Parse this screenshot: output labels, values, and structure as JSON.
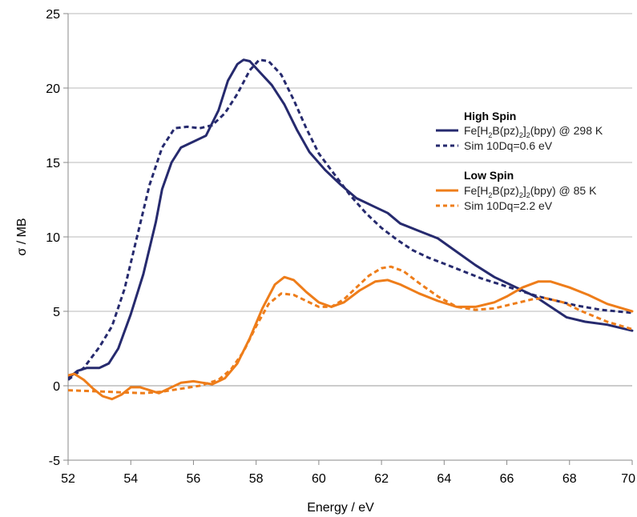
{
  "chart_data": {
    "type": "line",
    "xlabel": "Energy / eV",
    "ylabel": "σ / MB",
    "xlim": [
      52,
      70
    ],
    "ylim": [
      -5,
      25
    ],
    "xticks": [
      "52",
      "54",
      "56",
      "58",
      "60",
      "62",
      "64",
      "66",
      "68",
      "70"
    ],
    "yticks": [
      "-5",
      "0",
      "5",
      "10",
      "15",
      "20",
      "25"
    ],
    "grid": "horizontal",
    "legend_position": "right",
    "legend_groups": [
      {
        "heading": "High Spin",
        "entries": [
          0,
          1
        ]
      },
      {
        "heading": "Low Spin",
        "entries": [
          2,
          3
        ]
      }
    ],
    "colors": {
      "navy": "#262a6e",
      "orange": "#ee7d1a",
      "grid": "#b8b8b8",
      "axis": "#8a8a8a"
    },
    "series": [
      {
        "name": "Fe[H2B(pz)2]2(bpy) @ 298 K",
        "legend_label": {
          "main": "Fe[H",
          "sub1": "2",
          "mid1": "B(pz)",
          "sub2": "2",
          "mid2": "]",
          "sub3": "2",
          "tail": "(bpy) @ 298 K"
        },
        "color": "#262a6e",
        "dashed": false,
        "points": [
          [
            52,
            0.5
          ],
          [
            52.3,
            1.0
          ],
          [
            52.6,
            1.2
          ],
          [
            53.0,
            1.2
          ],
          [
            53.3,
            1.5
          ],
          [
            53.6,
            2.5
          ],
          [
            54.0,
            4.8
          ],
          [
            54.4,
            7.5
          ],
          [
            54.8,
            11.0
          ],
          [
            55.0,
            13.2
          ],
          [
            55.3,
            15.0
          ],
          [
            55.6,
            16.0
          ],
          [
            56.0,
            16.4
          ],
          [
            56.4,
            16.8
          ],
          [
            56.8,
            18.5
          ],
          [
            57.1,
            20.5
          ],
          [
            57.4,
            21.6
          ],
          [
            57.6,
            21.9
          ],
          [
            57.8,
            21.8
          ],
          [
            58.1,
            21.1
          ],
          [
            58.5,
            20.2
          ],
          [
            58.9,
            18.9
          ],
          [
            59.3,
            17.2
          ],
          [
            59.7,
            15.7
          ],
          [
            60.2,
            14.5
          ],
          [
            60.7,
            13.5
          ],
          [
            61.2,
            12.6
          ],
          [
            61.8,
            12.0
          ],
          [
            62.2,
            11.6
          ],
          [
            62.6,
            10.9
          ],
          [
            63.2,
            10.4
          ],
          [
            63.8,
            9.9
          ],
          [
            64.4,
            9.0
          ],
          [
            65.0,
            8.1
          ],
          [
            65.6,
            7.3
          ],
          [
            66.3,
            6.6
          ],
          [
            66.9,
            6.0
          ],
          [
            67.4,
            5.3
          ],
          [
            67.9,
            4.6
          ],
          [
            68.5,
            4.3
          ],
          [
            69.2,
            4.1
          ],
          [
            70,
            3.7
          ]
        ]
      },
      {
        "name": "Sim 10Dq=0.6 eV",
        "legend_label": {
          "main": "Sim 10Dq=0.6 eV"
        },
        "color": "#262a6e",
        "dashed": true,
        "points": [
          [
            52,
            0.4
          ],
          [
            52.5,
            1.2
          ],
          [
            53.0,
            2.6
          ],
          [
            53.4,
            4.0
          ],
          [
            53.8,
            6.5
          ],
          [
            54.2,
            10.0
          ],
          [
            54.6,
            13.5
          ],
          [
            55.0,
            16.0
          ],
          [
            55.4,
            17.3
          ],
          [
            55.8,
            17.4
          ],
          [
            56.2,
            17.3
          ],
          [
            56.6,
            17.5
          ],
          [
            57.0,
            18.3
          ],
          [
            57.4,
            19.6
          ],
          [
            57.8,
            21.2
          ],
          [
            58.1,
            21.9
          ],
          [
            58.4,
            21.8
          ],
          [
            58.8,
            20.9
          ],
          [
            59.2,
            19.2
          ],
          [
            59.6,
            17.3
          ],
          [
            60.0,
            15.6
          ],
          [
            60.5,
            14.2
          ],
          [
            61.0,
            12.8
          ],
          [
            61.5,
            11.6
          ],
          [
            62.0,
            10.6
          ],
          [
            62.5,
            9.8
          ],
          [
            63.0,
            9.1
          ],
          [
            63.5,
            8.6
          ],
          [
            64.0,
            8.2
          ],
          [
            64.6,
            7.7
          ],
          [
            65.2,
            7.2
          ],
          [
            65.8,
            6.8
          ],
          [
            66.4,
            6.4
          ],
          [
            67.0,
            6.0
          ],
          [
            67.6,
            5.7
          ],
          [
            68.2,
            5.4
          ],
          [
            69.0,
            5.1
          ],
          [
            70,
            4.9
          ]
        ]
      },
      {
        "name": "Fe[H2B(pz)2]2(bpy) @ 85 K",
        "legend_label": {
          "main": "Fe[H",
          "sub1": "2",
          "mid1": "B(pz)",
          "sub2": "2",
          "mid2": "]",
          "sub3": "2",
          "tail": "(bpy) @ 85 K"
        },
        "color": "#ee7d1a",
        "dashed": false,
        "points": [
          [
            52,
            0.7
          ],
          [
            52.2,
            0.8
          ],
          [
            52.5,
            0.4
          ],
          [
            52.8,
            -0.2
          ],
          [
            53.1,
            -0.7
          ],
          [
            53.4,
            -0.9
          ],
          [
            53.7,
            -0.6
          ],
          [
            54.0,
            -0.1
          ],
          [
            54.3,
            -0.1
          ],
          [
            54.6,
            -0.3
          ],
          [
            54.9,
            -0.5
          ],
          [
            55.2,
            -0.2
          ],
          [
            55.6,
            0.2
          ],
          [
            56.0,
            0.3
          ],
          [
            56.3,
            0.2
          ],
          [
            56.6,
            0.1
          ],
          [
            57.0,
            0.5
          ],
          [
            57.4,
            1.5
          ],
          [
            57.8,
            3.2
          ],
          [
            58.2,
            5.2
          ],
          [
            58.6,
            6.8
          ],
          [
            58.9,
            7.3
          ],
          [
            59.2,
            7.1
          ],
          [
            59.6,
            6.3
          ],
          [
            60.0,
            5.6
          ],
          [
            60.4,
            5.3
          ],
          [
            60.8,
            5.6
          ],
          [
            61.3,
            6.4
          ],
          [
            61.8,
            7.0
          ],
          [
            62.2,
            7.1
          ],
          [
            62.6,
            6.8
          ],
          [
            63.2,
            6.2
          ],
          [
            63.8,
            5.7
          ],
          [
            64.4,
            5.3
          ],
          [
            65.0,
            5.3
          ],
          [
            65.6,
            5.6
          ],
          [
            66.0,
            6.0
          ],
          [
            66.5,
            6.6
          ],
          [
            67.0,
            7.0
          ],
          [
            67.4,
            7.0
          ],
          [
            68.0,
            6.6
          ],
          [
            68.6,
            6.1
          ],
          [
            69.2,
            5.5
          ],
          [
            70,
            5.0
          ]
        ]
      },
      {
        "name": "Sim 10Dq=2.2 eV",
        "legend_label": {
          "main": "Sim 10Dq=2.2 eV"
        },
        "color": "#ee7d1a",
        "dashed": true,
        "points": [
          [
            52,
            -0.3
          ],
          [
            52.6,
            -0.35
          ],
          [
            53.2,
            -0.4
          ],
          [
            53.8,
            -0.45
          ],
          [
            54.4,
            -0.5
          ],
          [
            55.0,
            -0.4
          ],
          [
            55.6,
            -0.2
          ],
          [
            56.2,
            0.0
          ],
          [
            56.8,
            0.4
          ],
          [
            57.2,
            1.1
          ],
          [
            57.6,
            2.3
          ],
          [
            58.0,
            4.0
          ],
          [
            58.4,
            5.5
          ],
          [
            58.8,
            6.2
          ],
          [
            59.2,
            6.1
          ],
          [
            59.6,
            5.7
          ],
          [
            60.0,
            5.3
          ],
          [
            60.4,
            5.3
          ],
          [
            60.8,
            5.8
          ],
          [
            61.2,
            6.6
          ],
          [
            61.6,
            7.4
          ],
          [
            62.0,
            7.9
          ],
          [
            62.3,
            8.0
          ],
          [
            62.7,
            7.7
          ],
          [
            63.2,
            6.9
          ],
          [
            63.8,
            6.0
          ],
          [
            64.4,
            5.3
          ],
          [
            65.0,
            5.1
          ],
          [
            65.6,
            5.2
          ],
          [
            66.2,
            5.5
          ],
          [
            66.8,
            5.8
          ],
          [
            67.2,
            5.9
          ],
          [
            67.8,
            5.6
          ],
          [
            68.4,
            5.0
          ],
          [
            69.2,
            4.3
          ],
          [
            70,
            3.8
          ]
        ]
      }
    ]
  }
}
